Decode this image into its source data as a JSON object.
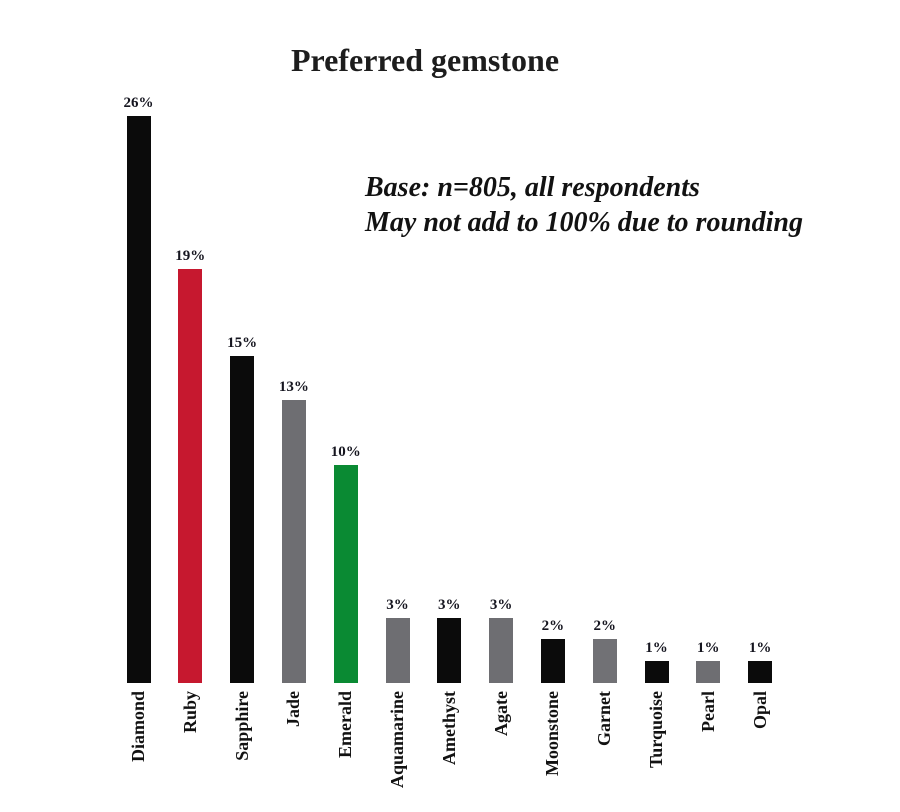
{
  "page": {
    "background": "#ffffff"
  },
  "chart_data": {
    "type": "bar",
    "title": "Preferred gemstone",
    "annotation_lines": [
      "Base: n=805, all respondents",
      "May not add to 100% due to rounding"
    ],
    "categories": [
      "Diamond",
      "Ruby",
      "Sapphire",
      "Jade",
      "Emerald",
      "Aquamarine",
      "Amethyst",
      "Agate",
      "Moonstone",
      "Garnet",
      "Turquoise",
      "Pearl",
      "Opal"
    ],
    "values": [
      26,
      19,
      15,
      13,
      10,
      3,
      3,
      3,
      2,
      2,
      1,
      1,
      1
    ],
    "value_labels": [
      "26%",
      "19%",
      "15%",
      "13%",
      "10%",
      "3%",
      "3%",
      "3%",
      "2%",
      "2%",
      "1%",
      "1%",
      "1%"
    ],
    "bar_colors": [
      "#0b0b0b",
      "#c6182f",
      "#0b0b0b",
      "#6e6e72",
      "#0a8a33",
      "#6e6e72",
      "#0b0b0b",
      "#6e6e72",
      "#0b0b0b",
      "#717175",
      "#0b0b0b",
      "#6e6e72",
      "#0b0b0b"
    ],
    "unit": "%",
    "ylim": [
      0,
      26
    ],
    "grid": false,
    "legend": false,
    "axis_lines": false,
    "xlabel": "",
    "ylabel": "",
    "category_label_rotation_deg": 90
  },
  "colors": {
    "bar_black": "#0b0b0b",
    "bar_red": "#c6182f",
    "bar_gray": "#6e6e72",
    "bar_green": "#0a8a33",
    "text": "#121212"
  }
}
